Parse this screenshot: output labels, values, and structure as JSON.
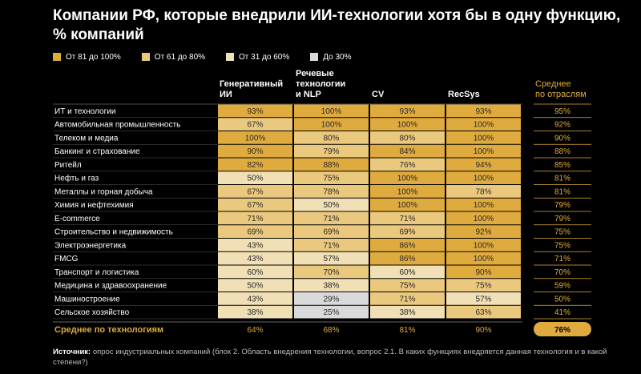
{
  "title": "Компании РФ, которые внедрили ИИ-технологии хотя бы в одну функцию, % компаний",
  "legend": [
    {
      "label": "От 81 до 100%",
      "color": "#E0AB3E"
    },
    {
      "label": "От 61 до 80%",
      "color": "#EAC87E"
    },
    {
      "label": "От 31 до 60%",
      "color": "#F1DFB5"
    },
    {
      "label": "До 30%",
      "color": "#DADADA"
    }
  ],
  "colors": {
    "bin_81_100": "#E0AB3E",
    "bin_61_80": "#EAC87E",
    "bin_31_60": "#F1DFB5",
    "bin_0_30": "#DADADA",
    "gold": "#E0AB3E",
    "background": "#000000"
  },
  "source": {
    "label": "Источник:",
    "text": "опрос индустриальных компаний (блок 2. Область внедрения технологии, вопрос 2.1. В каких функциях внедряется данная технология и в какой степени?)"
  },
  "chart_data": {
    "type": "heatmap",
    "title": "Компании РФ, которые внедрили ИИ-технологии хотя бы в одну функцию, % компаний",
    "unit": "%",
    "columns": [
      [
        "Генеративный",
        "ИИ"
      ],
      [
        "Речевые",
        "технологии",
        "и NLP"
      ],
      [
        "CV"
      ],
      [
        "RecSys"
      ]
    ],
    "avg_column_label": [
      "Среднее",
      "по отраслям"
    ],
    "avg_row_label": "Среднее по технологиям",
    "rows": [
      "ИТ и технологии",
      "Автомобильная промышленность",
      "Телеком и медиа",
      "Банкинг и страхование",
      "Ритейл",
      "Нефть и газ",
      "Металлы и горная добыча",
      "Химия и нефтехимия",
      "E-commerce",
      "Строительство и недвижимость",
      "Электроэнергетика",
      "FMCG",
      "Транспорт и логистика",
      "Медицина и здравоохранение",
      "Машиностроение",
      "Сельское хозяйство"
    ],
    "values": [
      [
        93,
        100,
        93,
        93
      ],
      [
        67,
        100,
        100,
        100
      ],
      [
        100,
        80,
        80,
        100
      ],
      [
        90,
        79,
        84,
        100
      ],
      [
        82,
        88,
        76,
        94
      ],
      [
        50,
        75,
        100,
        100
      ],
      [
        67,
        78,
        100,
        78
      ],
      [
        67,
        50,
        100,
        100
      ],
      [
        71,
        71,
        71,
        100
      ],
      [
        69,
        69,
        69,
        92
      ],
      [
        43,
        71,
        86,
        100
      ],
      [
        43,
        57,
        86,
        100
      ],
      [
        60,
        70,
        60,
        90
      ],
      [
        50,
        38,
        75,
        75
      ],
      [
        43,
        29,
        71,
        57
      ],
      [
        38,
        25,
        38,
        63
      ]
    ],
    "row_averages": [
      95,
      92,
      90,
      88,
      85,
      81,
      81,
      79,
      79,
      75,
      75,
      71,
      70,
      59,
      50,
      41
    ],
    "column_averages": [
      64,
      68,
      81,
      90
    ],
    "overall_average": 76
  }
}
